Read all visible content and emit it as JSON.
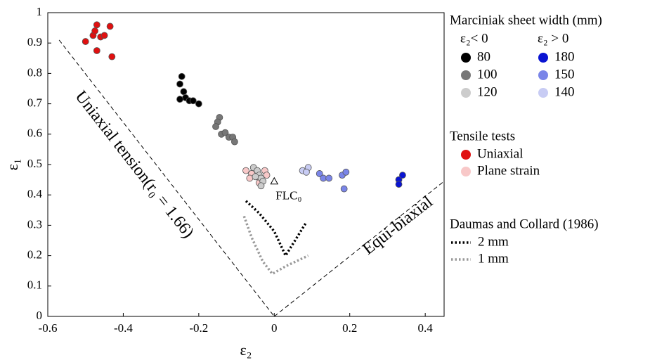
{
  "chart_data": {
    "type": "scatter",
    "x_label": "ε₂",
    "y_label": "ε₁",
    "xlim": [
      -0.6,
      0.45
    ],
    "ylim": [
      0,
      1
    ],
    "xticks": [
      -0.6,
      -0.4,
      -0.2,
      0,
      0.2,
      0.4
    ],
    "yticks": [
      0,
      0.1,
      0.2,
      0.3,
      0.4,
      0.5,
      0.6,
      0.7,
      0.8,
      0.9,
      1
    ],
    "grid": false,
    "marciniak": {
      "title": "Marciniak sheet width (mm)",
      "left_header": "ε₂< 0",
      "right_header": "ε₂ > 0",
      "left": [
        {
          "name": "80",
          "color": "#000000",
          "x": [
            -0.245,
            -0.25,
            -0.24,
            -0.235,
            -0.25,
            -0.225,
            -0.215,
            -0.2
          ],
          "values": [
            0.79,
            0.765,
            0.74,
            0.72,
            0.715,
            0.71,
            0.71,
            0.7
          ]
        },
        {
          "name": "100",
          "color": "#777777",
          "x": [
            -0.145,
            -0.15,
            -0.155,
            -0.14,
            -0.13,
            -0.12,
            -0.11,
            -0.105
          ],
          "values": [
            0.655,
            0.64,
            0.625,
            0.6,
            0.605,
            0.59,
            0.59,
            0.575
          ]
        },
        {
          "name": "120",
          "color": "#cccccc",
          "x": [
            -0.055,
            -0.045,
            -0.04,
            -0.035,
            -0.03,
            -0.035,
            -0.05
          ],
          "values": [
            0.49,
            0.48,
            0.465,
            0.455,
            0.445,
            0.43,
            0.46
          ]
        }
      ],
      "right": [
        {
          "name": "180",
          "color": "#0a14d2",
          "x": [
            0.33,
            0.34,
            0.33
          ],
          "values": [
            0.45,
            0.465,
            0.435
          ]
        },
        {
          "name": "150",
          "color": "#7a85e8",
          "x": [
            0.12,
            0.13,
            0.145,
            0.18,
            0.19,
            0.185
          ],
          "values": [
            0.47,
            0.455,
            0.455,
            0.465,
            0.475,
            0.42
          ]
        },
        {
          "name": "140",
          "color": "#c8ccf4",
          "x": [
            0.075,
            0.09,
            0.085
          ],
          "values": [
            0.48,
            0.49,
            0.475
          ]
        }
      ]
    },
    "tensile": {
      "title": "Tensile tests",
      "series": [
        {
          "name": "Uniaxial",
          "color": "#e01010",
          "x": [
            -0.5,
            -0.48,
            -0.475,
            -0.47,
            -0.46,
            -0.45,
            -0.435,
            -0.47,
            -0.43
          ],
          "values": [
            0.905,
            0.925,
            0.94,
            0.96,
            0.92,
            0.925,
            0.955,
            0.875,
            0.855
          ]
        },
        {
          "name": "Plane strain",
          "color": "#f8c8c8",
          "x": [
            -0.075,
            -0.06,
            -0.045,
            -0.025,
            -0.02,
            -0.065,
            -0.04
          ],
          "values": [
            0.48,
            0.47,
            0.46,
            0.48,
            0.465,
            0.455,
            0.44
          ]
        }
      ]
    },
    "daumas": {
      "title": "Daumas and Collard (1986)",
      "series": [
        {
          "name": "2 mm",
          "color": "#000000",
          "x": [
            -0.075,
            -0.04,
            0,
            0.03,
            0.05,
            0.085
          ],
          "values": [
            0.38,
            0.34,
            0.28,
            0.2,
            0.24,
            0.31
          ]
        },
        {
          "name": "1 mm",
          "color": "#999999",
          "x": [
            -0.08,
            -0.06,
            -0.03,
            -0.005,
            0.03,
            0.09
          ],
          "values": [
            0.33,
            0.26,
            0.18,
            0.14,
            0.165,
            0.2
          ]
        }
      ]
    },
    "flc0": {
      "label": "FLC₀",
      "x": 0,
      "y": 0.445
    },
    "reference_lines": [
      {
        "label": "Uniaxial tension(r₀ = 1.66)",
        "x": [
          -0.57,
          0
        ],
        "values": [
          0.91,
          0
        ]
      },
      {
        "label": "Equi-biaxial",
        "x": [
          0,
          0.45
        ],
        "values": [
          0,
          0.445
        ]
      }
    ]
  }
}
